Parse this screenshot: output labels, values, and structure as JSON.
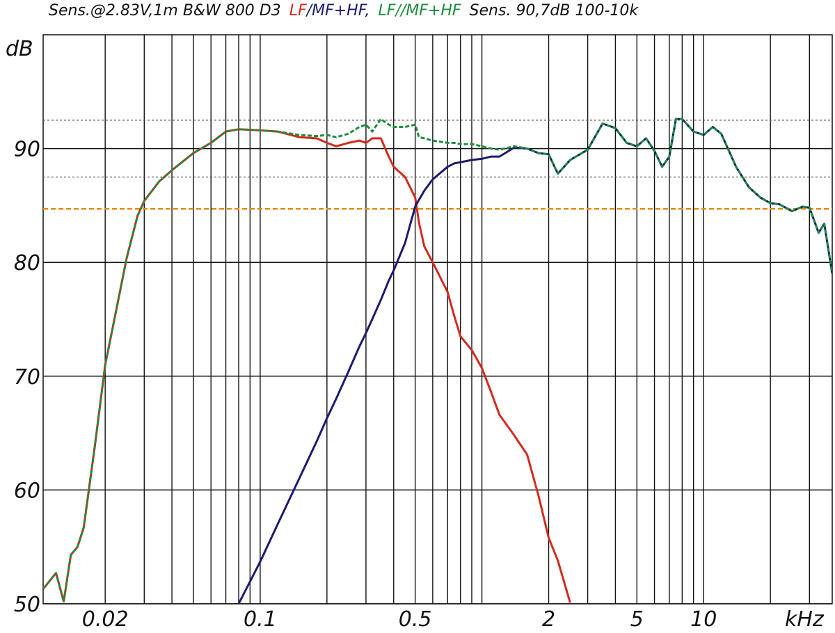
{
  "chart_data": {
    "type": "line",
    "title": "Sens.@2.83V,1m  B&W 800 D3",
    "legend_separators": [
      "/",
      ","
    ],
    "subtitle": "Sens. 90,7dB  100-10k",
    "ylabel": "dB",
    "xlabel": "kHz",
    "xscale": "log",
    "xlim": [
      0.0105,
      38
    ],
    "ylim": [
      50,
      100
    ],
    "xticks": [
      0.02,
      0.1,
      0.5,
      2,
      5,
      10
    ],
    "yticks": [
      50,
      60,
      70,
      80,
      90
    ],
    "xgrid": [
      0.02,
      0.03,
      0.04,
      0.05,
      0.06,
      0.07,
      0.08,
      0.09,
      0.1,
      0.2,
      0.3,
      0.4,
      0.5,
      0.6,
      0.7,
      0.8,
      0.9,
      1,
      2,
      3,
      4,
      5,
      6,
      7,
      8,
      9,
      10,
      20,
      30
    ],
    "reference_lines": [
      {
        "value": 92.5,
        "style": "dotted",
        "color": "#555555"
      },
      {
        "value": 87.5,
        "style": "dotted",
        "color": "#555555"
      },
      {
        "value": 84.7,
        "style": "dashed",
        "color": "#e88a10"
      }
    ],
    "x": [
      0.0105,
      0.012,
      0.013,
      0.014,
      0.015,
      0.016,
      0.018,
      0.02,
      0.022,
      0.025,
      0.028,
      0.03,
      0.035,
      0.04,
      0.05,
      0.06,
      0.07,
      0.08,
      0.1,
      0.12,
      0.15,
      0.18,
      0.2,
      0.22,
      0.25,
      0.28,
      0.3,
      0.32,
      0.35,
      0.38,
      0.4,
      0.45,
      0.5,
      0.52,
      0.55,
      0.6,
      0.7,
      0.75,
      0.8,
      0.9,
      1.0,
      1.1,
      1.2,
      1.4,
      1.6,
      1.8,
      2.0,
      2.2,
      2.5,
      3,
      3.5,
      4,
      4.5,
      5,
      5.5,
      6,
      6.5,
      7,
      7.5,
      8,
      9,
      10,
      11,
      12,
      14,
      16,
      18,
      20,
      22,
      25,
      28,
      30,
      33,
      35,
      38
    ],
    "series": [
      {
        "name": "LF",
        "color": "#d42a1e",
        "style": "solid",
        "values": [
          51.3,
          52.7,
          50.2,
          54.3,
          55.0,
          56.7,
          64.0,
          71.0,
          75.0,
          80.4,
          84.1,
          85.4,
          87.1,
          88.1,
          89.6,
          90.5,
          91.5,
          91.7,
          91.6,
          91.5,
          91.0,
          90.9,
          90.5,
          90.2,
          90.5,
          90.7,
          90.5,
          90.9,
          90.9,
          89.3,
          88.4,
          87.5,
          85.7,
          83.5,
          81.4,
          80.0,
          77.4,
          75.3,
          73.5,
          72.3,
          70.7,
          68.6,
          66.6,
          64.8,
          63.1,
          59.5,
          55.8,
          53.8,
          50.1,
          null,
          null,
          null,
          null,
          null,
          null,
          null,
          null,
          null,
          null,
          null,
          null,
          null,
          null,
          null,
          null,
          null,
          null,
          null,
          null,
          null,
          null,
          null,
          null,
          null,
          null
        ]
      },
      {
        "name": "MF+HF",
        "color": "#1c1a70",
        "style": "solid",
        "values": [
          null,
          null,
          null,
          null,
          null,
          null,
          null,
          null,
          null,
          null,
          null,
          null,
          null,
          null,
          null,
          null,
          null,
          50.0,
          53.7,
          57.0,
          61.0,
          64.3,
          66.3,
          68.0,
          70.4,
          72.6,
          73.8,
          75.0,
          76.7,
          78.4,
          79.3,
          81.7,
          84.9,
          85.5,
          86.3,
          87.3,
          88.4,
          88.7,
          88.8,
          89.0,
          89.1,
          89.3,
          89.3,
          90.1,
          90.0,
          89.6,
          89.5,
          87.8,
          89.0,
          89.9,
          92.2,
          91.8,
          90.5,
          90.2,
          90.9,
          89.8,
          88.4,
          89.3,
          92.6,
          92.6,
          91.5,
          91.2,
          91.9,
          91.3,
          88.4,
          86.6,
          85.7,
          85.2,
          85.1,
          84.5,
          84.9,
          84.8,
          82.6,
          83.4,
          79.0
        ]
      },
      {
        "name": "LF//MF+HF",
        "color": "#1e8c3e",
        "style": "dashed",
        "values": [
          51.3,
          52.7,
          50.2,
          54.3,
          55.0,
          56.7,
          64.0,
          71.0,
          75.0,
          80.4,
          84.1,
          85.4,
          87.1,
          88.1,
          89.6,
          90.5,
          91.5,
          91.7,
          91.6,
          91.5,
          91.2,
          91.1,
          91.2,
          91.0,
          91.3,
          91.9,
          92.1,
          91.5,
          92.6,
          92.1,
          91.9,
          91.9,
          92.1,
          91.0,
          90.9,
          90.7,
          90.5,
          90.5,
          90.4,
          90.4,
          90.2,
          90.0,
          89.9,
          90.2,
          90.0,
          89.6,
          89.5,
          87.8,
          89.0,
          89.9,
          92.2,
          91.8,
          90.5,
          90.2,
          90.9,
          89.8,
          88.4,
          89.3,
          92.6,
          92.6,
          91.5,
          91.2,
          91.9,
          91.3,
          88.4,
          86.6,
          85.7,
          85.2,
          85.1,
          84.5,
          84.9,
          84.8,
          82.6,
          83.4,
          79.0
        ]
      }
    ]
  }
}
